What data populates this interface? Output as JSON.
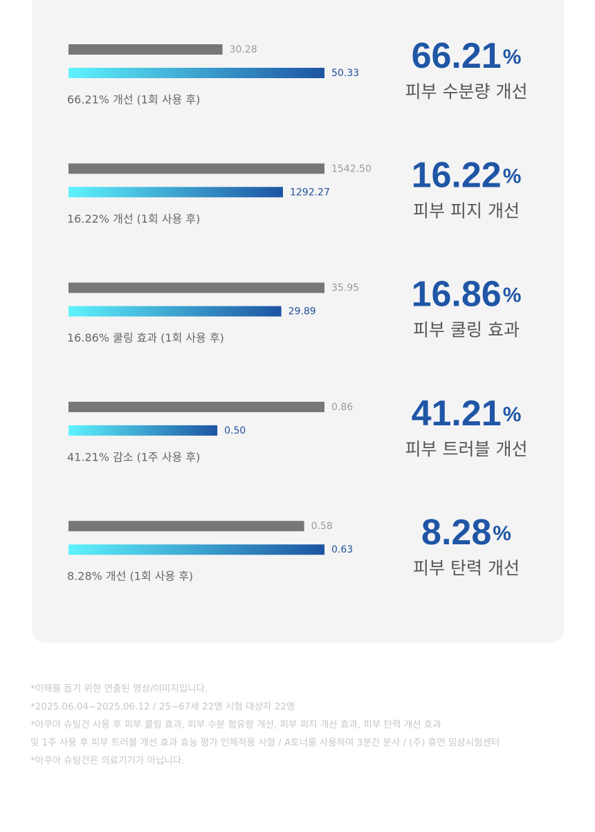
{
  "chart_data": [
    {
      "type": "bar",
      "values": [
        30.28,
        50.33
      ],
      "value_labels": [
        "30.28",
        "50.33"
      ],
      "colors": [
        "#777777",
        "#1d54a2"
      ],
      "gradient_start": "#5ef3fd",
      "caption": "66.21% 개선 (1회 사용 후)",
      "highlight_value": 66.21,
      "highlight_unit": "%",
      "title": "피부 수분량 개선"
    },
    {
      "type": "bar",
      "values": [
        1542.5,
        1292.27
      ],
      "value_labels": [
        "1542.50",
        "1292.27"
      ],
      "colors": [
        "#777777",
        "#1d54a2"
      ],
      "gradient_start": "#5ef3fd",
      "caption": "16.22% 개선 (1회 사용 후)",
      "highlight_value": 16.22,
      "highlight_unit": "%",
      "title": "피부 피지 개선"
    },
    {
      "type": "bar",
      "values": [
        35.95,
        29.89
      ],
      "value_labels": [
        "35.95",
        "29.89"
      ],
      "colors": [
        "#777777",
        "#1d54a2"
      ],
      "gradient_start": "#5ef3fd",
      "caption": "16.86% 쿨링 효과 (1회 사용 후)",
      "highlight_value": 16.86,
      "highlight_unit": "%",
      "title": "피부 쿨링 효과"
    },
    {
      "type": "bar",
      "values": [
        0.86,
        0.5
      ],
      "value_labels": [
        "0.86",
        "0.50"
      ],
      "colors": [
        "#777777",
        "#1d54a2"
      ],
      "gradient_start": "#5ef3fd",
      "caption": "41.21% 감소 (1주 사용 후)",
      "highlight_value": 41.21,
      "highlight_unit": "%",
      "title": "피부 트러블 개선"
    },
    {
      "type": "bar",
      "values": [
        0.58,
        0.63
      ],
      "value_labels": [
        "0.58",
        "0.63"
      ],
      "colors": [
        "#777777",
        "#1d54a2"
      ],
      "gradient_start": "#5ef3fd",
      "caption": "8.28% 개선 (1회 사용 후)",
      "highlight_value": 8.28,
      "highlight_unit": "%",
      "title": "피부 탄력 개선"
    }
  ],
  "notes": [
    "*이해를 돕기 위한 연출된 영상/이미지입니다.",
    "*2025.06.04~2025.06.12 / 25~67세 22명 시험 대상자 22명",
    "*아쿠아 슈팅건 사용 후 피부 쿨링 효과, 피부 수분 함유량 개선, 피부 피지 개선 효과, 피부 탄력 개선 효과",
    "및 1주 사용 후 피부 트러블 개선 효과 효능 평가 인체적용 시험 / A토너를 사용하여 3분간 분사 / (주) 휴먼 임상시험센터",
    "*아쿠아 슈팅건은 의료기기가 아닙니다."
  ]
}
